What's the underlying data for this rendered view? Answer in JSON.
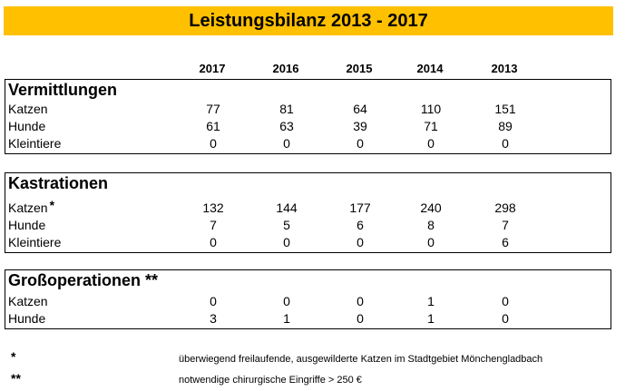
{
  "title": "Leistungsbilanz 2013 - 2017",
  "years": [
    "2017",
    "2016",
    "2015",
    "2014",
    "2013"
  ],
  "sections": [
    {
      "title": "Vermittlungen",
      "rows": [
        {
          "label": "Katzen",
          "star": "",
          "values": [
            "77",
            "81",
            "64",
            "110",
            "151"
          ]
        },
        {
          "label": "Hunde",
          "star": "",
          "values": [
            "61",
            "63",
            "39",
            "71",
            "89"
          ]
        },
        {
          "label": "Kleintiere",
          "star": "",
          "values": [
            "0",
            "0",
            "0",
            "0",
            "0"
          ]
        }
      ]
    },
    {
      "title": "Kastrationen",
      "rows": [
        {
          "label": "Katzen",
          "star": "*",
          "values": [
            "132",
            "144",
            "177",
            "240",
            "298"
          ]
        },
        {
          "label": "Hunde",
          "star": "",
          "values": [
            "7",
            "5",
            "6",
            "8",
            "7"
          ]
        },
        {
          "label": "Kleintiere",
          "star": "",
          "values": [
            "0",
            "0",
            "0",
            "0",
            "6"
          ]
        }
      ]
    },
    {
      "title": "Großoperationen **",
      "rows": [
        {
          "label": "Katzen",
          "star": "",
          "values": [
            "0",
            "0",
            "0",
            "1",
            "0"
          ]
        },
        {
          "label": "Hunde",
          "star": "",
          "values": [
            "3",
            "1",
            "0",
            "1",
            "0"
          ]
        }
      ]
    }
  ],
  "footnotes": [
    {
      "mark": "*",
      "text": "überwiegend freilaufende, ausgewilderte Katzen im Stadtgebiet Mönchengladbach"
    },
    {
      "mark": "**",
      "text": "notwendige chirurgische Eingriffe > 250 €"
    }
  ]
}
